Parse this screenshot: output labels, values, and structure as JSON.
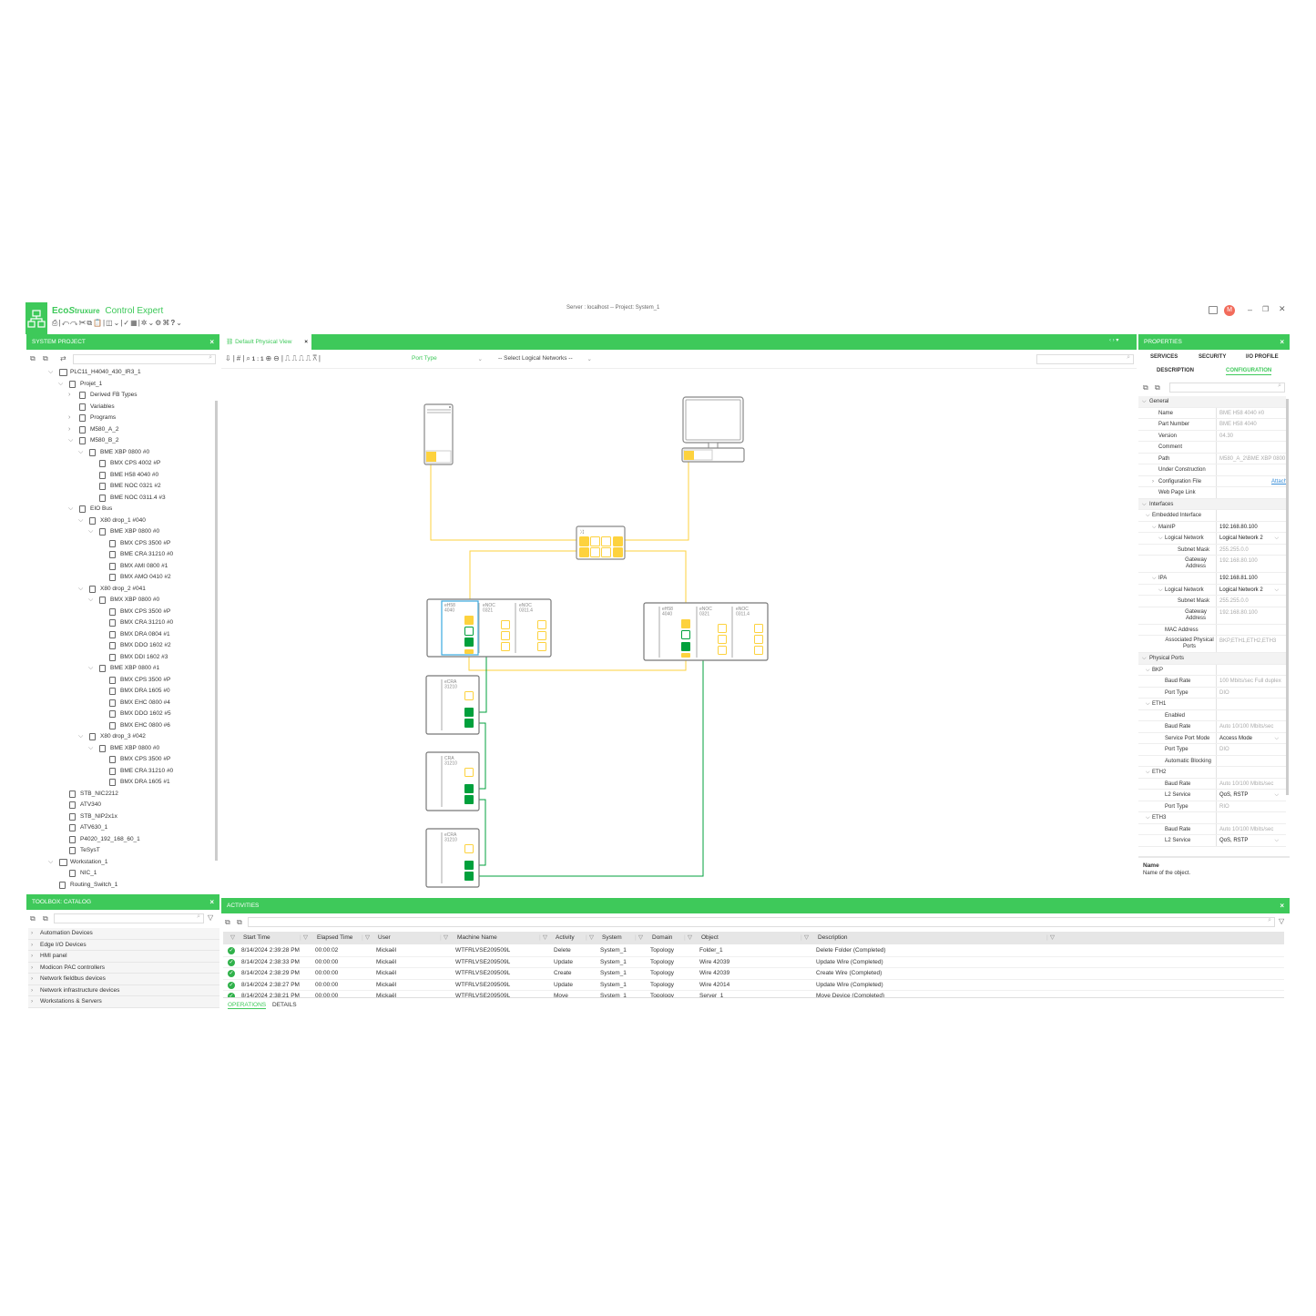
{
  "app": {
    "brand_eco": "Eco",
    "brand_struxure": "truxure",
    "product": "Control Expert",
    "server_info": "Server : localhost -- Project: System_1",
    "user_initial": "M",
    "accent": "#3ec95a"
  },
  "system_project": {
    "title": "SYSTEM PROJECT",
    "search_placeholder": "",
    "tree": [
      {
        "label": "PLC11_H4040_430_IR3_1",
        "level": 0,
        "chev": "open",
        "icon": "folder"
      },
      {
        "label": "Projet_1",
        "level": 1,
        "chev": "open",
        "icon": "project"
      },
      {
        "label": "Derived FB Types",
        "level": 2,
        "chev": "closed",
        "icon": "fb"
      },
      {
        "label": "Variables",
        "level": 2,
        "chev": "",
        "icon": "var"
      },
      {
        "label": "Programs",
        "level": 2,
        "chev": "closed",
        "icon": "fb"
      },
      {
        "label": "M580_A_2",
        "level": 2,
        "chev": "closed",
        "icon": "rack"
      },
      {
        "label": "M580_B_2",
        "level": 2,
        "chev": "open",
        "icon": "rack"
      },
      {
        "label": "BME XBP 0800 #0",
        "level": 3,
        "chev": "open",
        "icon": "rack"
      },
      {
        "label": "BMX CPS 4002 #P",
        "level": 4,
        "chev": "",
        "icon": "module"
      },
      {
        "label": "BME H58 4040 #0",
        "level": 4,
        "chev": "",
        "icon": "module"
      },
      {
        "label": "BME NOC 0321 #2",
        "level": 4,
        "chev": "",
        "icon": "module"
      },
      {
        "label": "BME NOC 0311.4 #3",
        "level": 4,
        "chev": "",
        "icon": "module"
      },
      {
        "label": "EIO Bus",
        "level": 2,
        "chev": "open",
        "icon": "bus"
      },
      {
        "label": "X80 drop_1 #040",
        "level": 3,
        "chev": "open",
        "icon": "rack"
      },
      {
        "label": "BME XBP 0800 #0",
        "level": 4,
        "chev": "open",
        "icon": "rack"
      },
      {
        "label": "BMX CPS 3500 #P",
        "level": 5,
        "chev": "",
        "icon": "module"
      },
      {
        "label": "BME CRA 31210 #0",
        "level": 5,
        "chev": "",
        "icon": "module"
      },
      {
        "label": "BMX AMI 0800 #1",
        "level": 5,
        "chev": "",
        "icon": "module"
      },
      {
        "label": "BMX AMO 0410 #2",
        "level": 5,
        "chev": "",
        "icon": "module"
      },
      {
        "label": "X80 drop_2 #041",
        "level": 3,
        "chev": "open",
        "icon": "rack"
      },
      {
        "label": "BMX XBP 0800 #0",
        "level": 4,
        "chev": "open",
        "icon": "rack"
      },
      {
        "label": "BMX CPS 3500 #P",
        "level": 5,
        "chev": "",
        "icon": "module"
      },
      {
        "label": "BMX CRA 31210 #0",
        "level": 5,
        "chev": "",
        "icon": "module"
      },
      {
        "label": "BMX DRA 0804 #1",
        "level": 5,
        "chev": "",
        "icon": "module"
      },
      {
        "label": "BMX DDO 1602 #2",
        "level": 5,
        "chev": "",
        "icon": "module"
      },
      {
        "label": "BMX DDI 1602 #3",
        "level": 5,
        "chev": "",
        "icon": "module"
      },
      {
        "label": "BME XBP 0800 #1",
        "level": 4,
        "chev": "open",
        "icon": "rack"
      },
      {
        "label": "BMX CPS 3500 #P",
        "level": 5,
        "chev": "",
        "icon": "module"
      },
      {
        "label": "BMX DRA 1605 #0",
        "level": 5,
        "chev": "",
        "icon": "module"
      },
      {
        "label": "BMX EHC 0800 #4",
        "level": 5,
        "chev": "",
        "icon": "module"
      },
      {
        "label": "BMX DDO 1602 #5",
        "level": 5,
        "chev": "",
        "icon": "module"
      },
      {
        "label": "BMX EHC 0800 #6",
        "level": 5,
        "chev": "",
        "icon": "module"
      },
      {
        "label": "X80 drop_3 #042",
        "level": 3,
        "chev": "open",
        "icon": "rack"
      },
      {
        "label": "BME XBP 0800 #0",
        "level": 4,
        "chev": "open",
        "icon": "rack"
      },
      {
        "label": "BMX CPS 3500 #P",
        "level": 5,
        "chev": "",
        "icon": "module"
      },
      {
        "label": "BME CRA 31210 #0",
        "level": 5,
        "chev": "",
        "icon": "module"
      },
      {
        "label": "BMX DRA 1605 #1",
        "level": 5,
        "chev": "",
        "icon": "module"
      },
      {
        "label": "STB_NIC2212",
        "level": 1,
        "chev": "",
        "icon": "device"
      },
      {
        "label": "ATV340",
        "level": 1,
        "chev": "",
        "icon": "device"
      },
      {
        "label": "STB_NIP2x1x",
        "level": 1,
        "chev": "",
        "icon": "device"
      },
      {
        "label": "ATV630_1",
        "level": 1,
        "chev": "",
        "icon": "drive"
      },
      {
        "label": "P4020_192_168_60_1",
        "level": 1,
        "chev": "",
        "icon": "device"
      },
      {
        "label": "TeSysT",
        "level": 1,
        "chev": "",
        "icon": "device"
      },
      {
        "label": "Workstation_1",
        "level": 0,
        "chev": "open",
        "icon": "monitor"
      },
      {
        "label": "NIC_1",
        "level": 1,
        "chev": "",
        "icon": "nic"
      },
      {
        "label": "Routing_Switch_1",
        "level": 0,
        "chev": "",
        "icon": "switch"
      }
    ]
  },
  "toolbox": {
    "title": "TOOLBOX: CATALOG",
    "items": [
      "Automation Devices",
      "Edge I/O Devices",
      "HMI panel",
      "Modicon PAC controllers",
      "Network fieldbus devices",
      "Network infrastructure devices",
      "Workstations & Servers"
    ]
  },
  "view": {
    "tab_label": "Default Physical View",
    "zoom_label": "1:1",
    "port_type": "Port Type",
    "logical_networks": "-- Select Logical Networks --",
    "devices": {
      "plc_a": [
        "eH58\n4040",
        "eNOC\n0321",
        "eNOC\n0311.4"
      ],
      "plc_b": [
        "eH58\n4040",
        "eNOC\n0321",
        "eNOC\n0311.4"
      ],
      "drop1": "eCRA\n31210",
      "drop2": "CRA\n31210",
      "drop3": "eCRA\n31210"
    },
    "colors": {
      "ethernet": "#fdd23e",
      "rio": "#00a03c",
      "selection": "#3aa9e0"
    }
  },
  "properties": {
    "title": "PROPERTIES",
    "tabs": [
      "SERVICES",
      "SECURITY",
      "I/O PROFILE",
      "DESCRIPTION",
      "CONFIGURATION"
    ],
    "active_tab": "CONFIGURATION",
    "rows": [
      {
        "t": "cat",
        "label": "General"
      },
      {
        "label": "Name",
        "value": "BME H58 4040 #0",
        "ro": true,
        "ind": 2
      },
      {
        "label": "Part Number",
        "value": "BME H58 4040",
        "ro": true,
        "ind": 2
      },
      {
        "label": "Version",
        "value": "04.30",
        "ro": true,
        "ind": 2
      },
      {
        "label": "Comment",
        "value": "",
        "ind": 2
      },
      {
        "label": "Path",
        "value": "M580_A_2\\BME XBP 0800",
        "ro": true,
        "ind": 2
      },
      {
        "label": "Under Construction",
        "value": "",
        "ind": 2,
        "check": "off"
      },
      {
        "label": "Configuration File",
        "value": "Attach",
        "ind": 2,
        "link": true,
        "exp": "closed"
      },
      {
        "label": "Web Page Link",
        "value": "",
        "ind": 2
      },
      {
        "t": "cat",
        "label": "Interfaces"
      },
      {
        "label": "Embedded Interface",
        "value": "",
        "ind": 1,
        "exp": "open"
      },
      {
        "label": "MainIP",
        "value": "192.168.80.100",
        "ind": 2,
        "exp": "open"
      },
      {
        "label": "Logical Network",
        "value": "Logical Network 2",
        "ind": 3,
        "exp": "open",
        "dd": true
      },
      {
        "label": "Subnet Mask",
        "value": "255.255.0.0",
        "ro": true,
        "ind": 5
      },
      {
        "label": "Gateway Address",
        "value": "192.168.80.100",
        "ro": true,
        "ind": 5,
        "tall": true
      },
      {
        "label": "IPA",
        "value": "192.168.81.100",
        "ind": 2,
        "exp": "open"
      },
      {
        "label": "Logical Network",
        "value": "Logical Network 2",
        "ind": 3,
        "exp": "open",
        "dd": true
      },
      {
        "label": "Subnet Mask",
        "value": "255.255.0.0",
        "ro": true,
        "ind": 5
      },
      {
        "label": "Gateway Address",
        "value": "192.168.80.100",
        "ro": true,
        "ind": 5,
        "tall": true
      },
      {
        "label": "MAC Address",
        "value": "",
        "ind": 3
      },
      {
        "label": "Associated Physical Ports",
        "value": "BKP,ETH1,ETH2,ETH3",
        "ro": true,
        "ind": 3,
        "tall": true
      },
      {
        "t": "cat",
        "label": "Physical Ports"
      },
      {
        "label": "BKP",
        "value": "",
        "ind": 1,
        "exp": "open"
      },
      {
        "label": "Baud Rate",
        "value": "100 Mbits/sec Full duplex",
        "ro": true,
        "ind": 3
      },
      {
        "label": "Port Type",
        "value": "DIO",
        "ro": true,
        "ind": 3
      },
      {
        "label": "ETH1",
        "value": "",
        "ind": 1,
        "exp": "open"
      },
      {
        "label": "Enabled",
        "value": "",
        "ind": 3,
        "check": "on"
      },
      {
        "label": "Baud Rate",
        "value": "Auto 10/100 Mbits/sec",
        "ro": true,
        "ind": 3
      },
      {
        "label": "Service Port Mode",
        "value": "Access Mode",
        "ind": 3,
        "dd": true
      },
      {
        "label": "Port Type",
        "value": "DIO",
        "ro": true,
        "ind": 3
      },
      {
        "label": "Automatic Blocking",
        "value": "",
        "ind": 3,
        "check": "off"
      },
      {
        "label": "ETH2",
        "value": "",
        "ind": 1,
        "exp": "open"
      },
      {
        "label": "Baud Rate",
        "value": "Auto 10/100 Mbits/sec",
        "ro": true,
        "ind": 3
      },
      {
        "label": "L2 Service",
        "value": "QoS, RSTP",
        "ind": 3,
        "dd": true
      },
      {
        "label": "Port Type",
        "value": "RIO",
        "ro": true,
        "ind": 3
      },
      {
        "label": "ETH3",
        "value": "",
        "ind": 1,
        "exp": "open"
      },
      {
        "label": "Baud Rate",
        "value": "Auto 10/100 Mbits/sec",
        "ro": true,
        "ind": 3
      },
      {
        "label": "L2 Service",
        "value": "QoS, RSTP",
        "ind": 3,
        "dd": true
      }
    ],
    "help_title": "Name",
    "help_text": "Name of the object."
  },
  "activities": {
    "title": "ACTIVITIES",
    "columns": [
      "Start Time",
      "Elapsed Time",
      "User",
      "Machine Name",
      "Activity",
      "System",
      "Domain",
      "Object",
      "Description"
    ],
    "rows": [
      [
        "8/14/2024 2:39:28 PM",
        "00:00:02",
        "Mickaël",
        "WTFRLVSE209509L",
        "Delete",
        "System_1",
        "Topology",
        "Folder_1",
        "Delete Folder (Completed)"
      ],
      [
        "8/14/2024 2:38:33 PM",
        "00:00:00",
        "Mickaël",
        "WTFRLVSE209509L",
        "Update",
        "System_1",
        "Topology",
        "Wire 42039",
        "Update Wire (Completed)"
      ],
      [
        "8/14/2024 2:38:29 PM",
        "00:00:00",
        "Mickaël",
        "WTFRLVSE209509L",
        "Create",
        "System_1",
        "Topology",
        "Wire 42039",
        "Create Wire (Completed)"
      ],
      [
        "8/14/2024 2:38:27 PM",
        "00:00:00",
        "Mickaël",
        "WTFRLVSE209509L",
        "Update",
        "System_1",
        "Topology",
        "Wire 42014",
        "Update Wire (Completed)"
      ],
      [
        "8/14/2024 2:38:21 PM",
        "00:00:00",
        "Mickaël",
        "WTFRLVSE209509L",
        "Move",
        "System_1",
        "Topology",
        "Server_1",
        "Move Device (Completed)"
      ]
    ],
    "tabs": [
      "OPERATIONS",
      "DETAILS"
    ],
    "active_tab": "OPERATIONS"
  }
}
